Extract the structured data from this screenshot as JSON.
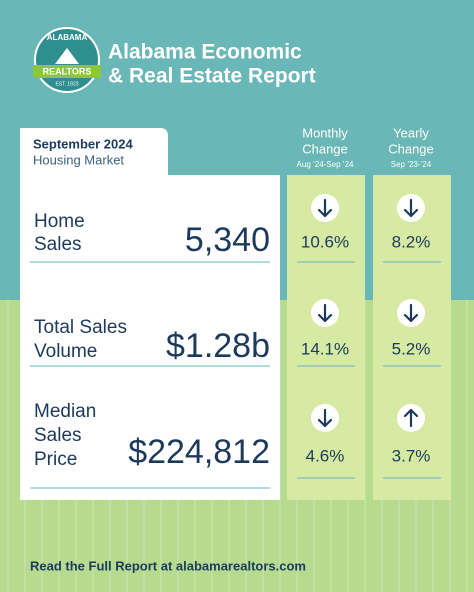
{
  "logo": {
    "name": "ALABAMA",
    "banner": "REALTORS",
    "est": "EST. 1923"
  },
  "header": {
    "title_line1": "Alabama Economic",
    "title_line2": "& Real Estate Report"
  },
  "card": {
    "period": "September 2024",
    "subtitle": "Housing Market"
  },
  "columns": [
    {
      "title": [
        "Monthly",
        "Change"
      ],
      "range": "Aug ’24-Sep ’24"
    },
    {
      "title": [
        "Yearly",
        "Change"
      ],
      "range": "Sep ’23-’24"
    }
  ],
  "rows": [
    {
      "label": [
        "Home",
        "Sales"
      ],
      "value": "5,340",
      "monthly": "10.6%",
      "yearly": "8.2%"
    },
    {
      "label": [
        "Total Sales",
        "Volume"
      ],
      "value": "$1.28b",
      "monthly": "14.1%",
      "yearly": "5.2%"
    },
    {
      "label": [
        "Median",
        "Sales",
        "Price"
      ],
      "value": "$224,812",
      "monthly": "4.6%",
      "yearly": "3.7%"
    }
  ],
  "footer": "Read the Full Report at alabamarealtors.com"
}
